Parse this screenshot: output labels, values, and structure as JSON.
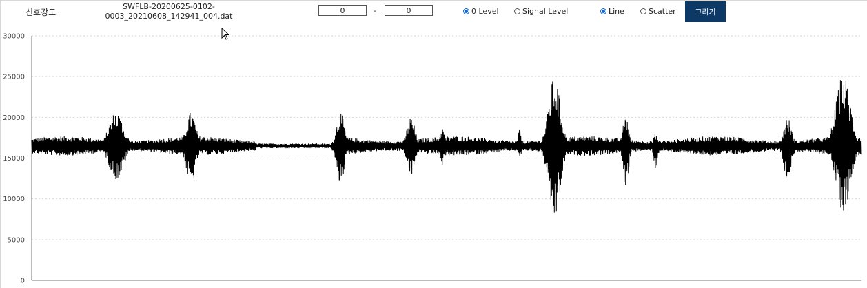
{
  "header": {
    "title": "신호강도",
    "filename_line1": "SWFLB-20200625-0102-",
    "filename_line2": "0003_20210608_142941_004.dat",
    "range_start": "0",
    "range_separator": "-",
    "range_end": "0",
    "level_options": {
      "zero_level": "0 Level",
      "signal_level": "Signal Level",
      "selected": "0 Level"
    },
    "plot_options": {
      "line": "Line",
      "scatter": "Scatter",
      "selected": "Line"
    },
    "draw_button": "그리기"
  },
  "colors": {
    "accent": "#0d3966",
    "radio": "#0b63d6",
    "trace": "#000000"
  },
  "chart_data": {
    "type": "line",
    "title": "",
    "xlabel": "",
    "ylabel": "",
    "ylim": [
      0,
      30000
    ],
    "yticks": [
      0,
      5000,
      10000,
      15000,
      20000,
      25000,
      30000
    ],
    "grid": "horizontal dotted",
    "legend": "none",
    "baseline": 16500,
    "base_amplitude_min": 600,
    "base_amplitude_max": 1200,
    "quiet_segment": {
      "x_start": 0.27,
      "x_end": 0.365,
      "amplitude": 300
    },
    "bursts": [
      {
        "x_center": 0.102,
        "width": 0.018,
        "max": 20800,
        "min": 12300
      },
      {
        "x_center": 0.192,
        "width": 0.012,
        "max": 20700,
        "min": 11600
      },
      {
        "x_center": 0.372,
        "width": 0.01,
        "max": 20700,
        "min": 11800
      },
      {
        "x_center": 0.457,
        "width": 0.01,
        "max": 20100,
        "min": 12700
      },
      {
        "x_center": 0.495,
        "width": 0.006,
        "max": 18800,
        "min": 14000
      },
      {
        "x_center": 0.588,
        "width": 0.004,
        "max": 18500,
        "min": 14800
      },
      {
        "x_center": 0.63,
        "width": 0.015,
        "max": 25000,
        "min": 7400
      },
      {
        "x_center": 0.716,
        "width": 0.007,
        "max": 20500,
        "min": 11100
      },
      {
        "x_center": 0.752,
        "width": 0.005,
        "max": 18200,
        "min": 13500
      },
      {
        "x_center": 0.911,
        "width": 0.01,
        "max": 20000,
        "min": 12500
      },
      {
        "x_center": 0.978,
        "width": 0.018,
        "max": 25400,
        "min": 8400
      }
    ]
  }
}
